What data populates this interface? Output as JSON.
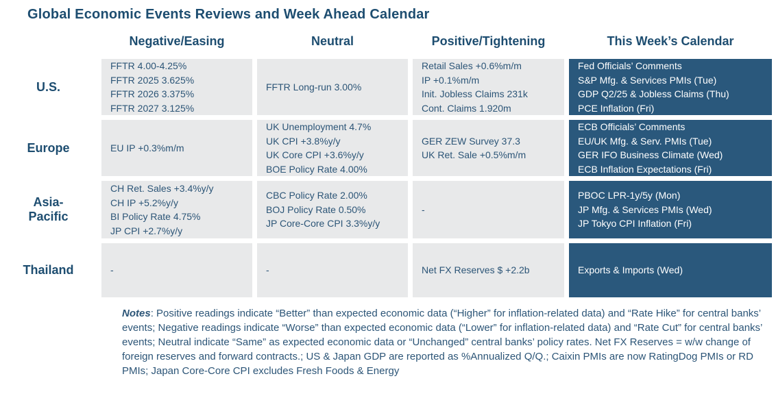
{
  "title": "Global Economic Events Reviews and Week Ahead Calendar",
  "colors": {
    "heading_text": "#1D4D70",
    "cell_text": "#2C5577",
    "cell_background": "#E8E9EA",
    "calendar_background": "#2A587C",
    "calendar_text": "#FFFFFF"
  },
  "table": {
    "column_headers": [
      "Negative/Easing",
      "Neutral",
      "Positive/Tightening",
      "This Week’s Calendar"
    ],
    "rows": [
      {
        "region": "U.S.",
        "negative_easing": [
          "FFTR 4.00-4.25%",
          "FFTR 2025 3.625%",
          "FFTR 2026 3.375%",
          "FFTR 2027 3.125%"
        ],
        "neutral": [
          "FFTR Long-run 3.00%"
        ],
        "positive_tightening": [
          "Retail Sales +0.6%m/m",
          "IP +0.1%m/m",
          "Init. Jobless Claims 231k",
          "Cont. Claims 1.920m"
        ],
        "calendar": [
          "Fed Officials’ Comments",
          "S&P Mfg. & Services PMIs (Tue)",
          "GDP Q2/25 & Jobless Claims (Thu)",
          "PCE Inflation (Fri)"
        ]
      },
      {
        "region": "Europe",
        "negative_easing": [
          "EU IP +0.3%m/m"
        ],
        "neutral": [
          "UK Unemployment 4.7%",
          "UK CPI +3.8%y/y",
          "UK Core CPI +3.6%y/y",
          "BOE Policy Rate 4.00%"
        ],
        "positive_tightening": [
          "GER ZEW Survey 37.3",
          "UK Ret. Sale +0.5%m/m"
        ],
        "calendar": [
          "ECB Officials’ Comments",
          "EU/UK Mfg. & Serv. PMIs (Tue)",
          "GER IFO Business Climate (Wed)",
          "ECB Inflation Expectations (Fri)"
        ]
      },
      {
        "region": "Asia-Pacific",
        "negative_easing": [
          "CH Ret. Sales +3.4%y/y",
          "CH IP +5.2%y/y",
          "BI Policy Rate 4.75%",
          "JP CPI +2.7%y/y"
        ],
        "neutral": [
          "CBC Policy Rate 2.00%",
          "BOJ Policy Rate 0.50%",
          "JP Core-Core CPI 3.3%y/y"
        ],
        "positive_tightening": [
          "-"
        ],
        "calendar": [
          "PBOC LPR-1y/5y (Mon)",
          "JP Mfg. & Services PMIs (Wed)",
          "JP Tokyo CPI Inflation (Fri)"
        ]
      },
      {
        "region": "Thailand",
        "negative_easing": [
          "-"
        ],
        "neutral": [
          "-"
        ],
        "positive_tightening": [
          "Net FX Reserves $ +2.2b"
        ],
        "calendar": [
          "Exports & Imports (Wed)"
        ]
      }
    ]
  },
  "notes": {
    "label": "Notes",
    "text": ": Positive readings indicate “Better” than expected economic data (“Higher” for inflation-related data) and “Rate Hike” for central banks’ events; Negative readings indicate “Worse” than expected economic data (“Lower” for inflation-related data) and “Rate Cut” for central banks’ events; Neutral indicate “Same” as expected economic data or “Unchanged” central banks’ policy rates. Net FX Reserves = w/w change of foreign reserves and forward contracts.; US &amp; Japan GDP are reported as %Annualized Q/Q.; Caixin PMIs are now RatingDog PMIs or RD PMIs; Japan Core-Core CPI excludes Fresh Foods &amp; Energy"
  }
}
